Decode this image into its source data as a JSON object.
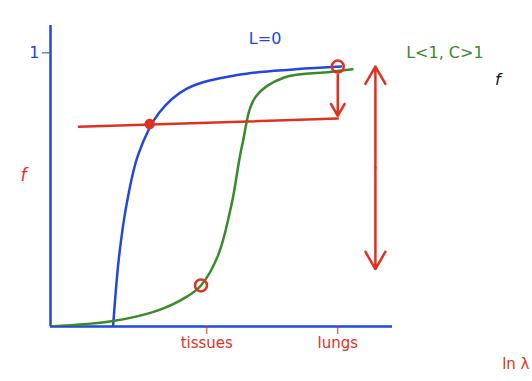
{
  "chart_data": {
    "type": "line",
    "xlabel": "ln λ",
    "ylabel": "f",
    "xlim": [
      0,
      10
    ],
    "ylim": [
      0,
      1.1
    ],
    "xticks": [
      {
        "value": 4.57,
        "label": "tissues"
      },
      {
        "value": 8.4,
        "label": "lungs"
      }
    ],
    "yticks": [
      1
    ],
    "series": [
      {
        "color": "#2148d8",
        "line_style": "solid",
        "x": [
          1.83,
          2.0,
          2.23,
          2.57,
          3.17,
          4.0,
          5.5,
          7.17,
          8.5
        ],
        "values": [
          0,
          0.25,
          0.45,
          0.63,
          0.78,
          0.87,
          0.92,
          0.94,
          0.95
        ]
      },
      {
        "color": "#3a8a2a",
        "line_style": "solid",
        "x": [
          0,
          1.83,
          3.17,
          4.0,
          4.4,
          4.9,
          5.3,
          5.6,
          6.0,
          6.83,
          8.17,
          8.83
        ],
        "values": [
          0,
          0.02,
          0.06,
          0.11,
          0.15,
          0.26,
          0.45,
          0.66,
          0.84,
          0.91,
          0.93,
          0.94
        ]
      }
    ],
    "lines": [
      {
        "color": "#e0301e",
        "marker": "none",
        "x": [
          0.83,
          8.4
        ],
        "y": [
          0.73,
          0.76
        ]
      },
      {
        "color": "#e0301e",
        "marker": "arrow",
        "x": [
          8.4,
          8.4
        ],
        "y": [
          0.92,
          0.77
        ]
      },
      {
        "color": "#e0301e",
        "marker": "double_arrow",
        "x": [
          9.5,
          9.5
        ],
        "y": [
          0.95,
          0.21
        ]
      }
    ],
    "points": [
      {
        "color": "#e0301e",
        "marker": "dot",
        "x": 2.9,
        "y": 0.74
      },
      {
        "color": "#e0301e",
        "marker": "circle",
        "x": 4.4,
        "y": 0.15
      },
      {
        "color": "#e0301e",
        "marker": "circle",
        "x": 8.4,
        "y": 0.95
      }
    ],
    "annotations": [
      {
        "text": "L=0",
        "x": 5.8,
        "y": 1.05,
        "color": "#2148d8"
      },
      {
        "text": "L<1, C>1",
        "x": 10.4,
        "y": 1.0,
        "color": "#3a8a2a"
      },
      {
        "text": "f",
        "x": 13.0,
        "y": 0.9,
        "color": "#111111"
      }
    ],
    "axis_color": "#2148d8",
    "tick_color": "#e0301e",
    "ytick_color": "#2148d8",
    "label_color": "#e0301e"
  }
}
